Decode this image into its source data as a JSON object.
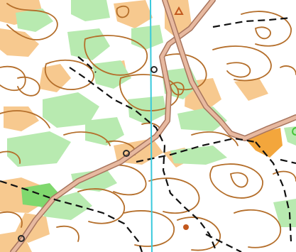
{
  "map": {
    "type": "orienteering-map",
    "colors": {
      "background": "#ffffff",
      "semi_open_land": "#f7c98f",
      "open_land": "#f3a63c",
      "vegetation_green": "#b8eab0",
      "dense_green": "#7fd86e",
      "contours": "#b46e2a",
      "road_fill": "#e7b9a0",
      "road_edge": "#a8755e",
      "paths": "#111111",
      "north_line": "#39c9dc",
      "point_feature": "#c2581d",
      "feature_marker": "#2a2a2a",
      "edge_mark_green": "#49c43b"
    },
    "symbols": {
      "magnetic_north_line": "north-line",
      "road": "road",
      "path": "dashed-path",
      "boulder_or_pit": "ring-marker",
      "knoll": "dot-marker",
      "hill_triangle": "triangle-marker"
    }
  }
}
